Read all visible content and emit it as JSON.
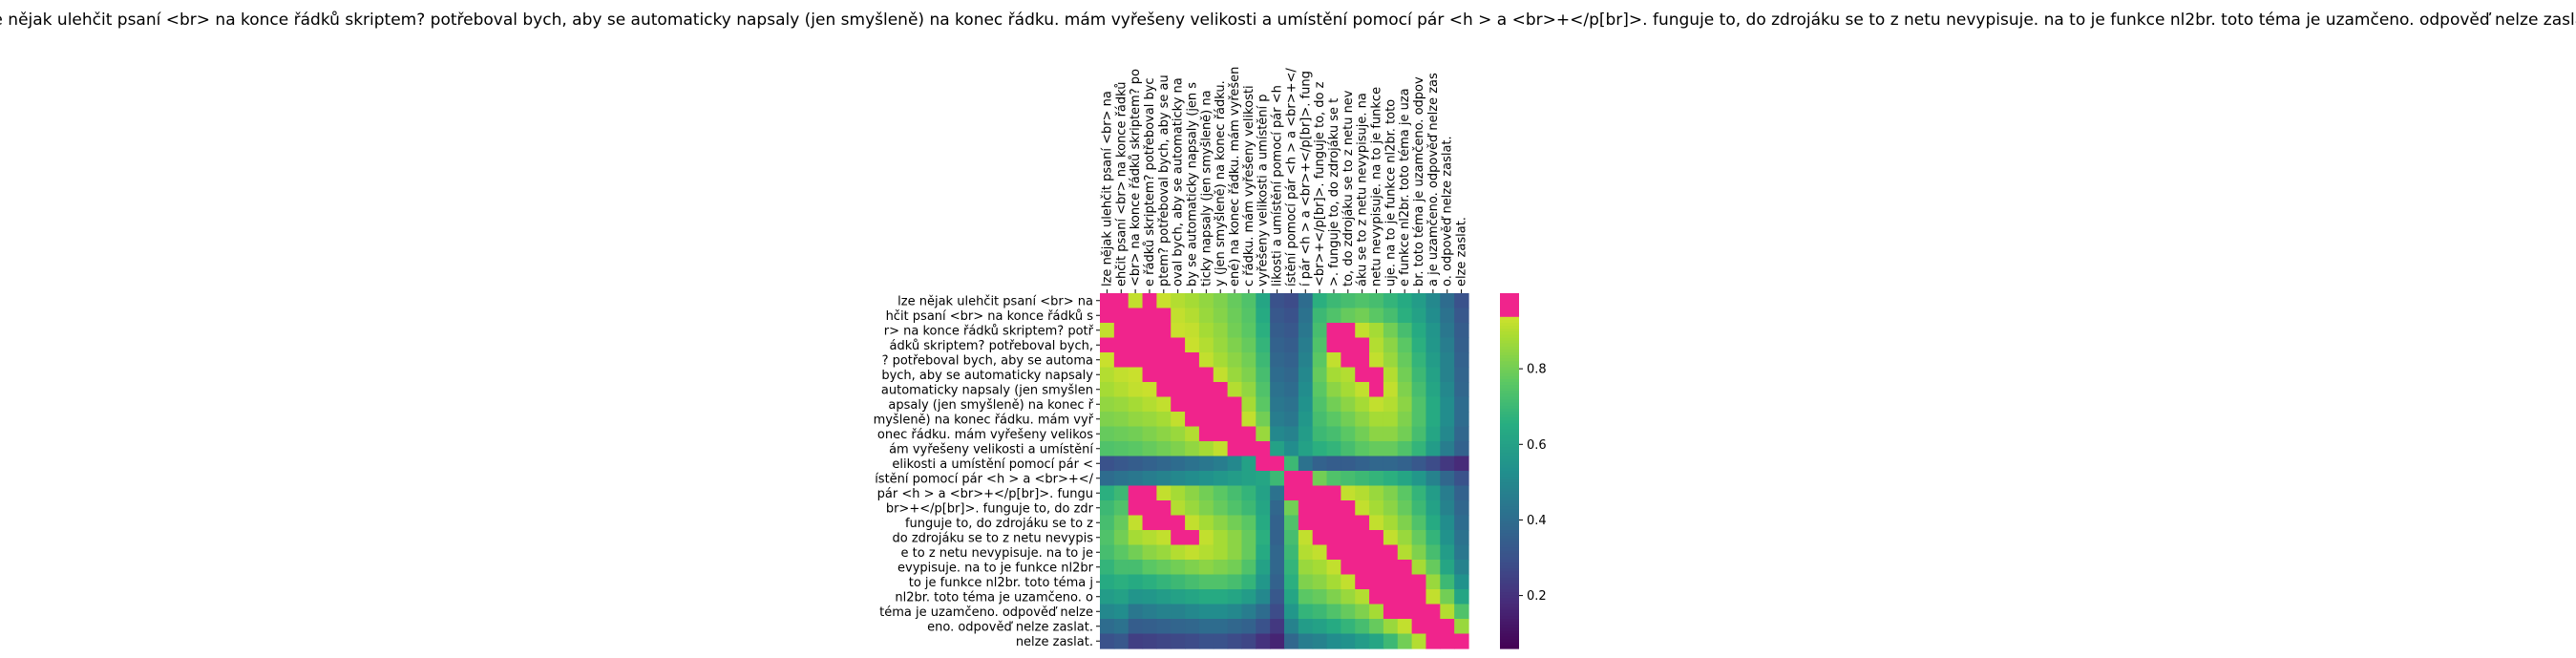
{
  "chart_data": {
    "type": "heatmap",
    "title": "lze nějak ulehčit psaní <br> na konce řádků skriptem? potřeboval bych, aby se automaticky napsaly (jen smyšleně) na konec řádku. mám vyřešeny velikosti a umístění pomocí pár <h > a <br>+</p[br]>. funguje to, do zdrojáku se to z netu nevypisuje. na to je funkce nl2br. toto téma je uzamčeno. odpověď nelze zaslat.",
    "x_tick_labels": [
      "lze nějak ulehčit psaní <br> na",
      "ehčit psaní <br> na konce řádků",
      "<br> na konce řádků skriptem? po",
      "e řádků skriptem? potřeboval byc",
      "ptem? potřeboval bych, aby se au",
      "oval bych, aby se automaticky na",
      "by se automaticky napsaly (jen s",
      "ticky napsaly (jen smyšleně) na",
      "y (jen smyšleně) na konec řádku.",
      "ené) na konec řádku. mám vyřešen",
      "c řádku. mám vyřešeny velikosti",
      "vyřešeny velikosti a umístění p",
      "likosti a umístění pomocí pár <h",
      "ístění pomocí pár <h > a <br>+</",
      "í pár <h > a <br>+</p[br]>. fung",
      "<br>+</p[br]>. funguje to, do z",
      ">. funguje to, do zdrojáku se t",
      "to, do zdrojáku se to z netu nev",
      "áku se to z netu nevypisuje. na",
      "netu nevypisuje. na to je funkce",
      "uje. na to je funkce nl2br. toto",
      "e funkce nl2br. toto téma je uza",
      "br. toto téma je uzamčeno. odpov",
      "a je uzamčeno. odpověď nelze zas",
      "o. odpověď nelze zaslat.",
      "elze zaslat."
    ],
    "y_tick_labels": [
      "lze nějak ulehčit psaní <br> na",
      "hčit psaní <br> na konce řádků s",
      "r> na konce řádků skriptem? potř",
      "ádků skriptem? potřeboval bych,",
      "? potřeboval bych, aby se automa",
      "bych, aby se automaticky napsaly",
      "automaticky napsaly (jen smyšlen",
      "apsaly (jen smyšleně) na konec ř",
      "myšleně) na konec řádku. mám vyř",
      "onec řádku. mám vyřešeny velikos",
      "ám vyřešeny velikosti a umístění",
      "elikosti a umístění pomocí pár <",
      "ístění pomocí pár <h > a <br>+</",
      "pár <h > a <br>+</p[br]>. fungu",
      "br>+</p[br]>. funguje to, do zdr",
      "funguje to, do zdrojáku se to z",
      "do zdrojáku se to z netu nevypis",
      "e to z netu nevypisuje. na to je",
      "evypisuje. na to je funkce nl2br",
      "to je funkce nl2br. toto téma j",
      "nl2br. toto téma je uzamčeno. o",
      "téma je uzamčeno. odpověď nelze",
      "eno. odpověď nelze zaslat.",
      "nelze zaslat."
    ],
    "colorbar": {
      "min": 0.06,
      "max": 1.0,
      "ticks": [
        0.2,
        0.4,
        0.6,
        0.8
      ]
    },
    "colormap": "viridis",
    "highlight_threshold": 0.94,
    "highlight_color": "#f0248c",
    "blocks": [
      {
        "rows": [
          0.02,
          0.44
        ],
        "cols": [
          0.02,
          0.44
        ],
        "value": 0.97
      },
      {
        "rows": [
          0.55,
          0.92
        ],
        "cols": [
          0.56,
          0.9
        ],
        "value": 0.97
      },
      {
        "rows": [
          0.02,
          0.44
        ],
        "cols": [
          0.56,
          0.9
        ],
        "value": 0.91
      },
      {
        "rows": [
          0.55,
          0.92
        ],
        "cols": [
          0.02,
          0.44
        ],
        "value": 0.91
      }
    ],
    "low_bands": [
      {
        "axis": "col",
        "range": [
          0.45,
          0.53
        ],
        "value": 0.3
      },
      {
        "axis": "row",
        "range": [
          0.44,
          0.5
        ],
        "value": 0.35
      }
    ],
    "matrix": [
      [
        1.0,
        0.94,
        0.92,
        0.95,
        0.93,
        0.9,
        0.88,
        0.85,
        0.82,
        0.78,
        0.74,
        0.62,
        0.3,
        0.28,
        0.4,
        0.66,
        0.7,
        0.72,
        0.74,
        0.72,
        0.68,
        0.64,
        0.58,
        0.5,
        0.4,
        0.3
      ],
      [
        0.94,
        1.0,
        0.95,
        0.96,
        0.94,
        0.92,
        0.9,
        0.86,
        0.83,
        0.79,
        0.75,
        0.64,
        0.32,
        0.3,
        0.42,
        0.7,
        0.74,
        0.78,
        0.8,
        0.76,
        0.72,
        0.66,
        0.6,
        0.52,
        0.42,
        0.32
      ],
      [
        0.92,
        0.95,
        1.0,
        0.97,
        0.95,
        0.93,
        0.92,
        0.88,
        0.85,
        0.8,
        0.76,
        0.66,
        0.34,
        0.32,
        0.44,
        0.72,
        0.96,
        0.95,
        0.92,
        0.88,
        0.8,
        0.72,
        0.64,
        0.55,
        0.44,
        0.34
      ],
      [
        0.95,
        0.96,
        0.97,
        1.0,
        0.96,
        0.95,
        0.93,
        0.9,
        0.86,
        0.82,
        0.78,
        0.68,
        0.36,
        0.34,
        0.46,
        0.74,
        0.95,
        0.96,
        0.94,
        0.9,
        0.84,
        0.76,
        0.66,
        0.56,
        0.46,
        0.35
      ],
      [
        0.93,
        0.94,
        0.95,
        0.96,
        1.0,
        0.97,
        0.95,
        0.92,
        0.88,
        0.84,
        0.8,
        0.7,
        0.38,
        0.36,
        0.48,
        0.76,
        0.92,
        0.94,
        0.96,
        0.92,
        0.86,
        0.78,
        0.68,
        0.58,
        0.48,
        0.36
      ],
      [
        0.9,
        0.92,
        0.93,
        0.95,
        0.97,
        1.0,
        0.97,
        0.95,
        0.92,
        0.86,
        0.82,
        0.72,
        0.4,
        0.38,
        0.5,
        0.78,
        0.88,
        0.9,
        0.95,
        0.96,
        0.9,
        0.8,
        0.7,
        0.6,
        0.48,
        0.37
      ],
      [
        0.88,
        0.9,
        0.92,
        0.93,
        0.95,
        0.97,
        1.0,
        0.97,
        0.95,
        0.9,
        0.85,
        0.74,
        0.42,
        0.4,
        0.52,
        0.76,
        0.84,
        0.88,
        0.92,
        0.95,
        0.92,
        0.82,
        0.72,
        0.62,
        0.5,
        0.38
      ],
      [
        0.85,
        0.86,
        0.88,
        0.9,
        0.92,
        0.95,
        0.97,
        1.0,
        0.97,
        0.94,
        0.88,
        0.76,
        0.44,
        0.42,
        0.54,
        0.74,
        0.8,
        0.84,
        0.88,
        0.92,
        0.9,
        0.84,
        0.74,
        0.64,
        0.52,
        0.4
      ],
      [
        0.82,
        0.83,
        0.85,
        0.86,
        0.88,
        0.92,
        0.95,
        0.97,
        1.0,
        0.96,
        0.92,
        0.8,
        0.46,
        0.44,
        0.56,
        0.72,
        0.76,
        0.8,
        0.84,
        0.88,
        0.88,
        0.82,
        0.74,
        0.64,
        0.52,
        0.4
      ],
      [
        0.78,
        0.79,
        0.8,
        0.82,
        0.84,
        0.86,
        0.9,
        0.94,
        0.96,
        1.0,
        0.96,
        0.86,
        0.5,
        0.48,
        0.58,
        0.7,
        0.72,
        0.76,
        0.8,
        0.84,
        0.84,
        0.8,
        0.72,
        0.62,
        0.5,
        0.38
      ],
      [
        0.74,
        0.75,
        0.76,
        0.78,
        0.8,
        0.82,
        0.85,
        0.88,
        0.92,
        0.96,
        1.0,
        0.94,
        0.6,
        0.52,
        0.6,
        0.66,
        0.68,
        0.72,
        0.76,
        0.78,
        0.78,
        0.74,
        0.68,
        0.58,
        0.46,
        0.36
      ],
      [
        0.3,
        0.32,
        0.34,
        0.36,
        0.38,
        0.4,
        0.42,
        0.44,
        0.46,
        0.5,
        0.6,
        0.96,
        1.0,
        0.7,
        0.42,
        0.36,
        0.34,
        0.34,
        0.36,
        0.38,
        0.38,
        0.36,
        0.32,
        0.28,
        0.22,
        0.18
      ],
      [
        0.4,
        0.42,
        0.44,
        0.46,
        0.48,
        0.5,
        0.52,
        0.54,
        0.56,
        0.58,
        0.6,
        0.62,
        0.7,
        1.0,
        0.96,
        0.8,
        0.74,
        0.72,
        0.7,
        0.68,
        0.66,
        0.62,
        0.56,
        0.48,
        0.38,
        0.3
      ],
      [
        0.66,
        0.7,
        0.96,
        0.95,
        0.92,
        0.88,
        0.84,
        0.8,
        0.76,
        0.72,
        0.68,
        0.6,
        0.42,
        0.96,
        1.0,
        0.97,
        0.95,
        0.92,
        0.9,
        0.86,
        0.82,
        0.76,
        0.68,
        0.58,
        0.46,
        0.36
      ],
      [
        0.7,
        0.74,
        0.95,
        0.96,
        0.94,
        0.9,
        0.86,
        0.82,
        0.78,
        0.74,
        0.7,
        0.62,
        0.38,
        0.8,
        0.97,
        1.0,
        0.97,
        0.95,
        0.92,
        0.88,
        0.84,
        0.78,
        0.7,
        0.6,
        0.48,
        0.38
      ],
      [
        0.72,
        0.78,
        0.92,
        0.94,
        0.96,
        0.95,
        0.92,
        0.88,
        0.84,
        0.8,
        0.76,
        0.64,
        0.36,
        0.74,
        0.95,
        0.97,
        1.0,
        0.97,
        0.95,
        0.92,
        0.88,
        0.82,
        0.74,
        0.64,
        0.52,
        0.4
      ],
      [
        0.74,
        0.8,
        0.88,
        0.9,
        0.92,
        0.96,
        0.95,
        0.92,
        0.88,
        0.84,
        0.78,
        0.66,
        0.36,
        0.72,
        0.92,
        0.95,
        0.97,
        1.0,
        0.97,
        0.95,
        0.92,
        0.86,
        0.78,
        0.68,
        0.54,
        0.42
      ],
      [
        0.72,
        0.76,
        0.8,
        0.84,
        0.86,
        0.9,
        0.92,
        0.9,
        0.88,
        0.84,
        0.78,
        0.64,
        0.38,
        0.7,
        0.9,
        0.92,
        0.95,
        0.97,
        1.0,
        0.97,
        0.95,
        0.9,
        0.82,
        0.72,
        0.58,
        0.44
      ],
      [
        0.68,
        0.72,
        0.72,
        0.76,
        0.78,
        0.8,
        0.82,
        0.84,
        0.82,
        0.8,
        0.74,
        0.6,
        0.38,
        0.68,
        0.86,
        0.88,
        0.92,
        0.95,
        0.97,
        1.0,
        0.97,
        0.94,
        0.88,
        0.78,
        0.62,
        0.48
      ],
      [
        0.64,
        0.66,
        0.64,
        0.66,
        0.68,
        0.7,
        0.72,
        0.74,
        0.74,
        0.72,
        0.68,
        0.56,
        0.36,
        0.66,
        0.82,
        0.84,
        0.88,
        0.92,
        0.95,
        0.97,
        1.0,
        0.97,
        0.94,
        0.86,
        0.7,
        0.54
      ],
      [
        0.58,
        0.6,
        0.55,
        0.56,
        0.58,
        0.6,
        0.62,
        0.64,
        0.64,
        0.62,
        0.58,
        0.5,
        0.32,
        0.62,
        0.76,
        0.78,
        0.82,
        0.86,
        0.9,
        0.94,
        0.97,
        1.0,
        0.97,
        0.92,
        0.8,
        0.62
      ],
      [
        0.5,
        0.52,
        0.44,
        0.46,
        0.48,
        0.48,
        0.5,
        0.52,
        0.52,
        0.5,
        0.46,
        0.4,
        0.28,
        0.56,
        0.68,
        0.7,
        0.74,
        0.78,
        0.82,
        0.88,
        0.94,
        0.97,
        1.0,
        0.97,
        0.9,
        0.74
      ],
      [
        0.4,
        0.42,
        0.34,
        0.35,
        0.36,
        0.37,
        0.38,
        0.4,
        0.4,
        0.38,
        0.36,
        0.3,
        0.22,
        0.48,
        0.58,
        0.6,
        0.64,
        0.68,
        0.72,
        0.78,
        0.86,
        0.92,
        0.97,
        1.0,
        0.96,
        0.86
      ],
      [
        0.3,
        0.32,
        0.24,
        0.25,
        0.26,
        0.27,
        0.28,
        0.3,
        0.3,
        0.28,
        0.26,
        0.2,
        0.16,
        0.38,
        0.46,
        0.48,
        0.52,
        0.54,
        0.58,
        0.62,
        0.7,
        0.8,
        0.9,
        0.96,
        1.0,
        0.96
      ]
    ]
  }
}
